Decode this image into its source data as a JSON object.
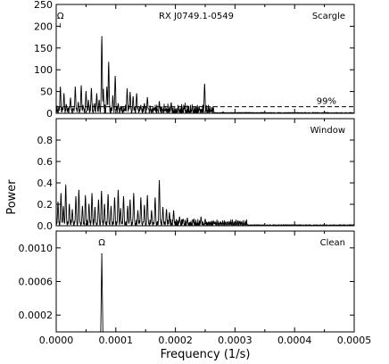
{
  "figure": {
    "ylabel": "Power",
    "xlabel": "Frequency (1/s)"
  },
  "chart_data": [
    {
      "type": "line",
      "panel": "top",
      "label": "Scargle",
      "title": "RX J0749.1-0549",
      "annotation": "Ω",
      "threshold": {
        "label": "99%",
        "y": 15
      },
      "xlim": [
        0,
        0.0005
      ],
      "ylim": [
        0,
        250
      ],
      "x_ticks": [],
      "y_ticks": [
        0,
        50,
        100,
        150,
        200,
        250
      ],
      "y_tick_labels": [
        "0",
        "50",
        "100",
        "150",
        "200",
        "250"
      ],
      "series": [
        {
          "peaks": [
            [
              7e-06,
              60
            ],
            [
              1.3e-05,
              45
            ],
            [
              1.7e-05,
              20
            ],
            [
              2.4e-05,
              35
            ],
            [
              2.9e-05,
              10
            ],
            [
              3.2e-05,
              60
            ],
            [
              3.7e-05,
              25
            ],
            [
              4.2e-05,
              63
            ],
            [
              4.5e-05,
              18
            ],
            [
              5e-05,
              50
            ],
            [
              5.4e-05,
              30
            ],
            [
              5.9e-05,
              57
            ],
            [
              6.4e-05,
              22
            ],
            [
              6.8e-05,
              45
            ],
            [
              7.2e-05,
              30
            ],
            [
              7.65e-05,
              176
            ],
            [
              7.9e-05,
              55
            ],
            [
              8.5e-05,
              60
            ],
            [
              8.8e-05,
              117
            ],
            [
              9.5e-05,
              40
            ],
            [
              9.9e-05,
              85
            ],
            [
              0.000104,
              22
            ],
            [
              0.000108,
              15
            ],
            [
              0.000115,
              10
            ],
            [
              0.000119,
              56
            ],
            [
              0.000124,
              48
            ],
            [
              0.000129,
              38
            ],
            [
              0.000135,
              45
            ],
            [
              0.000142,
              18
            ],
            [
              0.000148,
              22
            ],
            [
              0.000153,
              36
            ],
            [
              0.000158,
              10
            ],
            [
              0.000165,
              12
            ],
            [
              0.000173,
              27
            ],
            [
              0.000183,
              8
            ],
            [
              0.000193,
              24
            ],
            [
              0.000205,
              14
            ],
            [
              0.000215,
              16
            ],
            [
              0.000228,
              10
            ],
            [
              0.00024,
              12
            ],
            [
              0.000249,
              67
            ],
            [
              0.00026,
              5
            ],
            [
              0.00028,
              3
            ]
          ]
        }
      ]
    },
    {
      "type": "line",
      "panel": "middle",
      "label": "Window",
      "xlim": [
        0,
        0.0005
      ],
      "ylim": [
        0,
        1.0
      ],
      "x_ticks": [],
      "y_ticks": [
        0.0,
        0.2,
        0.4,
        0.6,
        0.8
      ],
      "y_tick_labels": [
        "0.0",
        "0.2",
        "0.4",
        "0.6",
        "0.8"
      ],
      "series": [
        {
          "peaks": [
            [
              3e-06,
              0.22
            ],
            [
              8e-06,
              0.3
            ],
            [
              1.2e-05,
              0.18
            ],
            [
              1.6e-05,
              0.38
            ],
            [
              2.2e-05,
              0.2
            ],
            [
              2.7e-05,
              0.15
            ],
            [
              3.3e-05,
              0.27
            ],
            [
              3.8e-05,
              0.33
            ],
            [
              4.4e-05,
              0.18
            ],
            [
              4.9e-05,
              0.28
            ],
            [
              5.5e-05,
              0.2
            ],
            [
              6e-05,
              0.3
            ],
            [
              6.5e-05,
              0.17
            ],
            [
              7.1e-05,
              0.24
            ],
            [
              7.6e-05,
              0.32
            ],
            [
              8.1e-05,
              0.2
            ],
            [
              8.7e-05,
              0.29
            ],
            [
              9.2e-05,
              0.18
            ],
            [
              9.8e-05,
              0.26
            ],
            [
              0.000104,
              0.33
            ],
            [
              0.000108,
              0.16
            ],
            [
              0.000113,
              0.27
            ],
            [
              0.00012,
              0.18
            ],
            [
              0.000124,
              0.24
            ],
            [
              0.00013,
              0.3
            ],
            [
              0.000137,
              0.14
            ],
            [
              0.000142,
              0.26
            ],
            [
              0.000148,
              0.19
            ],
            [
              0.000153,
              0.28
            ],
            [
              0.00016,
              0.14
            ],
            [
              0.000166,
              0.26
            ],
            [
              0.000173,
              0.42
            ],
            [
              0.000179,
              0.17
            ],
            [
              0.000185,
              0.15
            ],
            [
              0.00019,
              0.12
            ],
            [
              0.000197,
              0.14
            ],
            [
              0.000207,
              0.08
            ],
            [
              0.000213,
              0.06
            ],
            [
              0.00022,
              0.07
            ],
            [
              0.00023,
              0.05
            ],
            [
              0.000243,
              0.08
            ],
            [
              0.00025,
              0.06
            ],
            [
              0.000265,
              0.03
            ],
            [
              0.00029,
              0.02
            ],
            [
              0.00032,
              0.015
            ]
          ]
        }
      ]
    },
    {
      "type": "line",
      "panel": "bottom",
      "label": "Clean",
      "annotation": "Ω",
      "xlim": [
        0,
        0.0005
      ],
      "ylim": [
        0,
        0.0012
      ],
      "x_ticks": [
        0,
        0.0001,
        0.0002,
        0.0003,
        0.0004,
        0.0005
      ],
      "x_tick_labels": [
        "0.0000",
        "0.0001",
        "0.0002",
        "0.0003",
        "0.0004",
        "0.0005"
      ],
      "y_ticks": [
        0.0002,
        0.0006,
        0.001
      ],
      "y_tick_labels": [
        "0.0002",
        "0.0006",
        "0.0010"
      ],
      "series": [
        {
          "peaks": [
            [
              7.65e-05,
              0.00093
            ]
          ]
        }
      ]
    }
  ]
}
